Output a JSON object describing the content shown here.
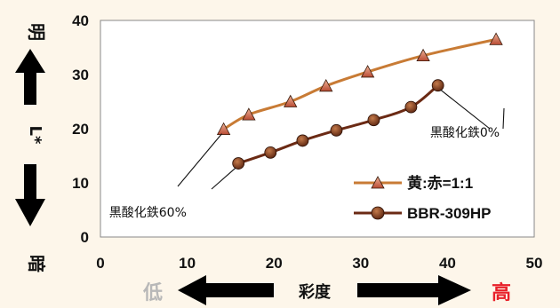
{
  "chart_data": {
    "type": "line",
    "xlabel": "彩度",
    "ylabel": "L*",
    "xlim": [
      0,
      50
    ],
    "ylim": [
      0,
      40
    ],
    "xticks": [
      0,
      10,
      20,
      30,
      40,
      50
    ],
    "yticks": [
      0,
      10,
      20,
      30,
      40
    ],
    "grid": false,
    "legend_position": "bottom-right",
    "y_top_label": "明",
    "y_bottom_label": "暗",
    "x_low_label": "低",
    "x_high_label": "高",
    "annotations": [
      {
        "text": "黒酸化鉄0%",
        "x": 38.0,
        "y": 18.5
      },
      {
        "text": "黒酸化鉄60%",
        "x": 1.0,
        "y": 3.8
      }
    ],
    "series": [
      {
        "name": "黄:赤=1:1",
        "color": "#c87b35",
        "marker": "triangle",
        "x": [
          14.2,
          17.1,
          21.9,
          26.0,
          30.8,
          37.2,
          45.6
        ],
        "y": [
          19.9,
          22.6,
          25.0,
          27.9,
          30.5,
          33.5,
          36.5
        ]
      },
      {
        "name": "BBR-309HP",
        "color": "#6b2a14",
        "marker": "circle",
        "x": [
          15.9,
          19.6,
          23.3,
          27.2,
          31.5,
          35.8,
          38.9
        ],
        "y": [
          13.6,
          15.6,
          17.8,
          19.7,
          21.6,
          24.0,
          28.0
        ]
      }
    ]
  }
}
